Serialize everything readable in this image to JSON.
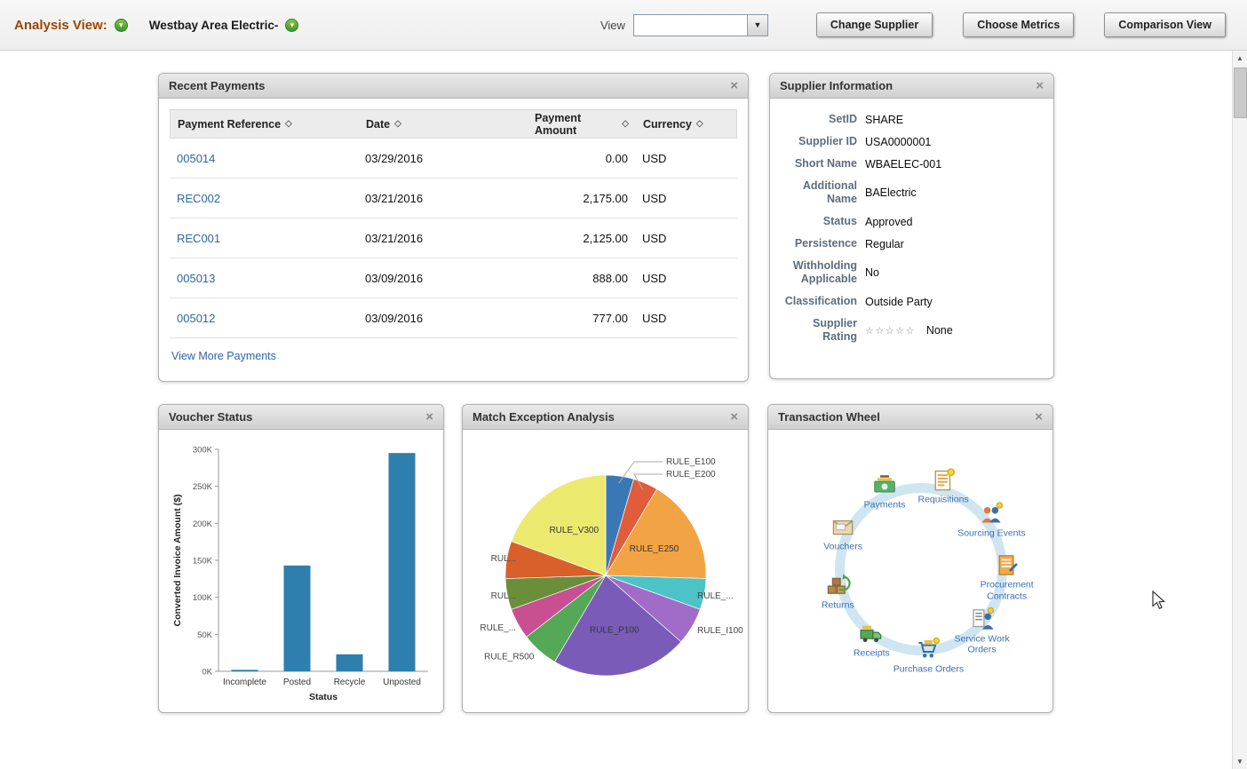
{
  "header": {
    "analysis_view_label": "Analysis View:",
    "supplier_name": "Westbay Area Electric-",
    "view_label": "View",
    "view_value": "",
    "buttons": [
      "Change Supplier",
      "Choose Metrics",
      "Comparison View"
    ]
  },
  "icons": {
    "close": "×",
    "sort": "◇",
    "dropdown": "▼",
    "chevron": "▾",
    "scroll_up": "▲",
    "scroll_down": "▼"
  },
  "recent_payments": {
    "title": "Recent Payments",
    "columns": [
      "Payment Reference",
      "Date",
      "Payment Amount",
      "Currency"
    ],
    "rows": [
      {
        "reference": "005014",
        "date": "03/29/2016",
        "amount": "0.00",
        "currency": "USD"
      },
      {
        "reference": "REC002",
        "date": "03/21/2016",
        "amount": "2,175.00",
        "currency": "USD"
      },
      {
        "reference": "REC001",
        "date": "03/21/2016",
        "amount": "2,125.00",
        "currency": "USD"
      },
      {
        "reference": "005013",
        "date": "03/09/2016",
        "amount": "888.00",
        "currency": "USD"
      },
      {
        "reference": "005012",
        "date": "03/09/2016",
        "amount": "777.00",
        "currency": "USD"
      }
    ],
    "view_more_label": "View More Payments"
  },
  "supplier_information": {
    "title": "Supplier Information",
    "fields": [
      {
        "label": "SetID",
        "value": "SHARE"
      },
      {
        "label": "Supplier ID",
        "value": "USA0000001"
      },
      {
        "label": "Short Name",
        "value": "WBAELEC-001"
      },
      {
        "label": "Additional Name",
        "value": "BAElectric"
      },
      {
        "label": "Status",
        "value": "Approved"
      },
      {
        "label": "Persistence",
        "value": "Regular"
      },
      {
        "label": "Withholding Applicable",
        "value": "No"
      },
      {
        "label": "Classification",
        "value": "Outside Party"
      },
      {
        "label": "Supplier Rating",
        "value": "None",
        "stars": "☆☆☆☆☆"
      }
    ]
  },
  "chart_data": [
    {
      "type": "bar",
      "title": "Voucher Status",
      "categories": [
        "Incomplete",
        "Posted",
        "Recycle",
        "Unposted"
      ],
      "values": [
        2000,
        143000,
        23000,
        295000
      ],
      "xlabel": "Status",
      "ylabel": "Converted Invoice Amount ($)",
      "ylim": [
        0,
        300000
      ],
      "ytick_step": 50000,
      "ytick_format": "K",
      "bar_color": "#2e7fad",
      "grid": false
    },
    {
      "type": "pie",
      "title": "Match Exception Analysis",
      "slices": [
        {
          "label": "RULE_E100",
          "value": 4.5,
          "color": "#3a78b5",
          "placement": "leader"
        },
        {
          "label": "RULE_E200",
          "value": 4.0,
          "color": "#e05c3a",
          "placement": "leader"
        },
        {
          "label": "RULE_E250",
          "value": 17.0,
          "color": "#f2a444",
          "placement": "inside"
        },
        {
          "label": "RULE_...",
          "value": 5.0,
          "color": "#4cc3c7",
          "placement": "outside"
        },
        {
          "label": "RULE_I100",
          "value": 6.0,
          "color": "#a06cc8",
          "placement": "outside"
        },
        {
          "label": "RULE_P100",
          "value": 22.0,
          "color": "#7a5cb8",
          "placement": "inside"
        },
        {
          "label": "RULE_R500",
          "value": 6.0,
          "color": "#55a855",
          "placement": "outside"
        },
        {
          "label": "RULE_...",
          "value": 5.0,
          "color": "#c94f93",
          "placement": "outside"
        },
        {
          "label": "RUL...",
          "value": 5.0,
          "color": "#6b8e3a",
          "placement": "outside"
        },
        {
          "label": "RUL...",
          "value": 6.0,
          "color": "#d95f2b",
          "placement": "outside"
        },
        {
          "label": "RULE_V300",
          "value": 19.5,
          "color": "#ece96f",
          "placement": "inside"
        }
      ]
    }
  ],
  "transaction_wheel": {
    "title": "Transaction Wheel",
    "ring_color": "#cfe5f2",
    "items": [
      {
        "label": "Payments",
        "icon": "payments-icon"
      },
      {
        "label": "Requisitions",
        "icon": "requisitions-icon"
      },
      {
        "label": "Sourcing Events",
        "icon": "sourcing-events-icon"
      },
      {
        "label": "Procurement Contracts",
        "icon": "procurement-contracts-icon"
      },
      {
        "label": "Service Work Orders",
        "icon": "service-work-orders-icon"
      },
      {
        "label": "Purchase Orders",
        "icon": "purchase-orders-icon"
      },
      {
        "label": "Receipts",
        "icon": "receipts-icon"
      },
      {
        "label": "Returns",
        "icon": "returns-icon"
      },
      {
        "label": "Vouchers",
        "icon": "vouchers-icon"
      }
    ]
  },
  "panels": {
    "voucher_status_title": "Voucher Status",
    "match_exception_title": "Match Exception Analysis"
  }
}
